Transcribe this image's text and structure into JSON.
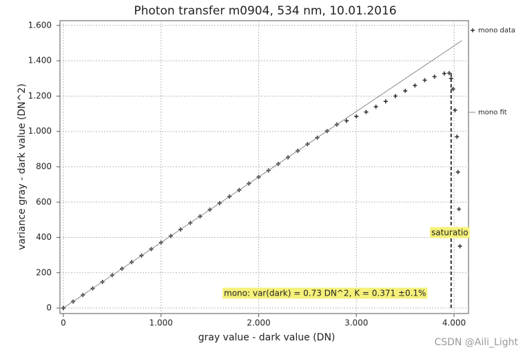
{
  "chart_data": {
    "type": "scatter",
    "title": "Photon transfer m0904, 534 nm, 10.01.2016",
    "x_label": "gray value - dark value (DN)",
    "y_label": "variance gray - dark value (DN^2)",
    "xlim": [
      -35,
      4148
    ],
    "ylim": [
      -31,
      1627
    ],
    "xticks": [
      0,
      {
        "value": 1000,
        "label": "1.000"
      },
      {
        "value": 2000,
        "label": "2.000"
      },
      {
        "value": 3000,
        "label": "3.000"
      },
      {
        "value": 4000,
        "label": "4.000"
      }
    ],
    "yticks": [
      0,
      200,
      400,
      600,
      800,
      {
        "value": 1000,
        "label": "1.000"
      },
      {
        "value": 1200,
        "label": "1.200"
      },
      {
        "value": 1400,
        "label": "1.400"
      },
      {
        "value": 1600,
        "label": "1.600"
      }
    ],
    "grid": true,
    "series": [
      {
        "name": "mono data",
        "color": "#333333",
        "kind": "scatter",
        "x": [
          0,
          100,
          200,
          300,
          400,
          500,
          600,
          700,
          800,
          900,
          1000,
          1100,
          1200,
          1300,
          1400,
          1500,
          1600,
          1700,
          1800,
          1900,
          2000,
          2100,
          2200,
          2300,
          2400,
          2500,
          2600,
          2700,
          2800,
          2900,
          3000,
          3100,
          3200,
          3300,
          3400,
          3500,
          3600,
          3700,
          3800,
          3900,
          3950,
          3970,
          3990,
          4010,
          4030,
          4040,
          4050,
          4060
        ],
        "values": [
          0,
          37,
          74,
          111,
          148,
          186,
          223,
          260,
          297,
          334,
          371,
          408,
          445,
          482,
          519,
          557,
          594,
          631,
          668,
          705,
          742,
          779,
          816,
          853,
          890,
          928,
          965,
          1002,
          1039,
          1060,
          1085,
          1110,
          1140,
          1170,
          1200,
          1230,
          1260,
          1290,
          1310,
          1328,
          1330,
          1300,
          1240,
          1120,
          970,
          770,
          560,
          350
        ]
      },
      {
        "name": "mono fit",
        "color": "#8a8a8a",
        "kind": "line",
        "x": [
          0,
          4080
        ],
        "values": [
          0,
          1514
        ]
      }
    ],
    "saturation": {
      "x": 3970,
      "label": "saturatio"
    },
    "annotation": "mono: var(dark) = 0.73 DN^2, K = 0.371 ±0.1%",
    "watermark": "CSDN @Aili_Light"
  }
}
